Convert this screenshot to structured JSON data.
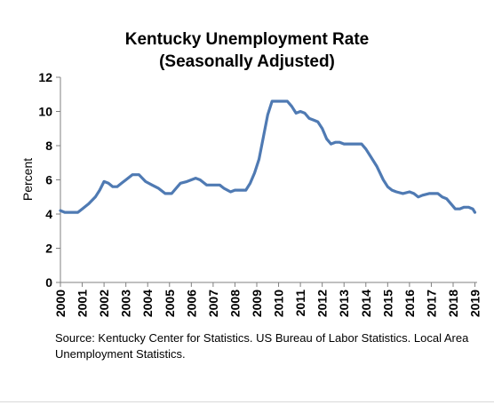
{
  "chart_data": {
    "type": "line",
    "title": "Kentucky Unemployment Rate",
    "subtitle": "(Seasonally Adjusted)",
    "xlabel": "",
    "ylabel": "Percent",
    "xlim": [
      2000,
      2019.1
    ],
    "ylim": [
      0,
      12
    ],
    "yticks": [
      "0",
      "2",
      "4",
      "6",
      "8",
      "10",
      "12"
    ],
    "xticks": [
      "2000",
      "2001",
      "2002",
      "2003",
      "2004",
      "2005",
      "2006",
      "2007",
      "2008",
      "2009",
      "2010",
      "2011",
      "2012",
      "2013",
      "2014",
      "2015",
      "2016",
      "2017",
      "2018",
      "2019"
    ],
    "grid": false,
    "legend": "none",
    "line_color": "#4f7ab3",
    "series": [
      {
        "x": [
          2000.0,
          2000.2,
          2000.5,
          2000.8,
          2001.0,
          2001.3,
          2001.6,
          2001.8,
          2002.0,
          2002.2,
          2002.4,
          2002.6,
          2002.8,
          2003.0,
          2003.3,
          2003.6,
          2003.9,
          2004.2,
          2004.5,
          2004.8,
          2005.1,
          2005.3,
          2005.5,
          2005.8,
          2006.0,
          2006.2,
          2006.4,
          2006.7,
          2007.0,
          2007.3,
          2007.5,
          2007.8,
          2008.0,
          2008.2,
          2008.5,
          2008.7,
          2008.9,
          2009.1,
          2009.3,
          2009.5,
          2009.7,
          2010.0,
          2010.2,
          2010.4,
          2010.6,
          2010.8,
          2011.0,
          2011.2,
          2011.4,
          2011.6,
          2011.8,
          2012.0,
          2012.2,
          2012.4,
          2012.6,
          2012.8,
          2013.0,
          2013.2,
          2013.4,
          2013.6,
          2013.8,
          2014.0,
          2014.2,
          2014.5,
          2014.8,
          2015.0,
          2015.2,
          2015.4,
          2015.7,
          2016.0,
          2016.2,
          2016.4,
          2016.6,
          2016.9,
          2017.1,
          2017.3,
          2017.5,
          2017.7,
          2017.9,
          2018.1,
          2018.3,
          2018.5,
          2018.7,
          2018.9,
          2019.0
        ],
        "y": [
          4.2,
          4.1,
          4.1,
          4.1,
          4.3,
          4.6,
          5.0,
          5.4,
          5.9,
          5.8,
          5.6,
          5.6,
          5.8,
          6.0,
          6.3,
          6.3,
          5.9,
          5.7,
          5.5,
          5.2,
          5.2,
          5.5,
          5.8,
          5.9,
          6.0,
          6.1,
          6.0,
          5.7,
          5.7,
          5.7,
          5.5,
          5.3,
          5.4,
          5.4,
          5.4,
          5.8,
          6.4,
          7.2,
          8.5,
          9.8,
          10.6,
          10.6,
          10.6,
          10.6,
          10.3,
          9.9,
          10.0,
          9.9,
          9.6,
          9.5,
          9.4,
          9.0,
          8.4,
          8.1,
          8.2,
          8.2,
          8.1,
          8.1,
          8.1,
          8.1,
          8.1,
          7.8,
          7.4,
          6.8,
          6.0,
          5.6,
          5.4,
          5.3,
          5.2,
          5.3,
          5.2,
          5.0,
          5.1,
          5.2,
          5.2,
          5.2,
          5.0,
          4.9,
          4.6,
          4.3,
          4.3,
          4.4,
          4.4,
          4.3,
          4.1
        ]
      }
    ]
  },
  "source_note": "Source: Kentucky Center for Statistics. US Bureau of Labor Statistics. Local Area Unemployment Statistics."
}
